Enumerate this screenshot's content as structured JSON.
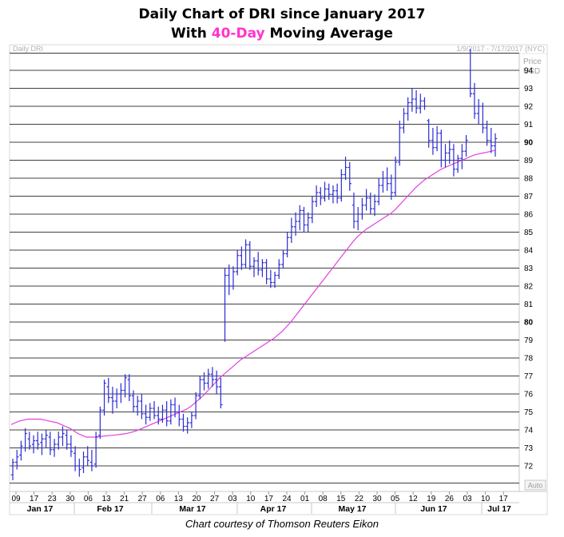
{
  "title_line1": "Daily Chart of DRI since January 2017",
  "title_line2_pre": "With ",
  "title_line2_highlight": "40-Day",
  "title_line2_post": " Moving Average",
  "corner_left": "Daily DRI",
  "corner_right": "1/9/2017 - 7/17/2017 (NYC)",
  "price_label": "Price",
  "currency_label": "USD",
  "auto_label": "Auto",
  "footer": "Chart courtesy of Thomson Reuters Eikon",
  "colors": {
    "bars": "#2b2bd6",
    "ma": "#e040e0",
    "grid": "#000000",
    "highlight": "#ff33cc"
  },
  "chart_data": {
    "type": "ohlc",
    "ylim": [
      71,
      95.5
    ],
    "yticks": [
      72,
      73,
      74,
      75,
      76,
      77,
      78,
      79,
      80,
      81,
      82,
      83,
      84,
      85,
      86,
      87,
      88,
      89,
      90,
      91,
      92,
      93,
      94
    ],
    "ytick_bold": [
      80,
      90
    ],
    "xticks": [
      "09",
      "17",
      "23",
      "30",
      "06",
      "13",
      "21",
      "27",
      "06",
      "13",
      "20",
      "27",
      "03",
      "10",
      "17",
      "24",
      "01",
      "08",
      "15",
      "22",
      "30",
      "05",
      "12",
      "19",
      "26",
      "03",
      "10",
      "17"
    ],
    "months": [
      "Jan 17",
      "Feb 17",
      "Mar 17",
      "Apr 17",
      "May 17",
      "Jun 17",
      "Jul 17"
    ],
    "series": [
      {
        "kind": "ohlc",
        "values": [
          [
            71.5,
            72.4,
            71.2,
            72.2
          ],
          [
            72.2,
            72.9,
            71.8,
            72.5
          ],
          [
            72.6,
            73.4,
            72.3,
            73.1
          ],
          [
            73.0,
            74.1,
            72.8,
            73.8
          ],
          [
            73.5,
            73.9,
            72.9,
            73.1
          ],
          [
            73.2,
            73.7,
            72.7,
            73.4
          ],
          [
            73.4,
            73.9,
            72.9,
            73.2
          ],
          [
            73.3,
            73.8,
            72.6,
            73.5
          ],
          [
            73.5,
            74.0,
            73.0,
            73.7
          ],
          [
            73.6,
            73.9,
            72.6,
            72.9
          ],
          [
            72.9,
            73.5,
            72.5,
            73.2
          ],
          [
            73.2,
            73.9,
            72.9,
            73.6
          ],
          [
            73.6,
            74.2,
            73.1,
            73.8
          ],
          [
            73.7,
            74.0,
            72.9,
            73.2
          ],
          [
            73.2,
            73.7,
            72.5,
            72.8
          ],
          [
            72.7,
            73.1,
            71.7,
            72.0
          ],
          [
            72.0,
            72.4,
            71.4,
            71.8
          ],
          [
            71.9,
            72.8,
            71.6,
            72.5
          ],
          [
            72.5,
            73.1,
            72.0,
            72.3
          ],
          [
            72.2,
            72.9,
            71.7,
            72.0
          ],
          [
            72.1,
            73.9,
            71.9,
            73.6
          ],
          [
            73.7,
            75.3,
            73.5,
            75.1
          ],
          [
            75.1,
            76.8,
            74.8,
            76.6
          ],
          [
            76.4,
            76.9,
            75.5,
            75.8
          ],
          [
            75.8,
            76.4,
            74.9,
            75.6
          ],
          [
            75.6,
            76.3,
            75.2,
            76.0
          ],
          [
            76.0,
            76.6,
            75.5,
            76.2
          ],
          [
            76.2,
            77.1,
            75.8,
            76.9
          ],
          [
            76.8,
            77.1,
            75.6,
            75.9
          ],
          [
            75.9,
            76.2,
            75.0,
            75.3
          ],
          [
            75.3,
            75.9,
            74.8,
            75.6
          ],
          [
            75.6,
            76.0,
            74.6,
            74.9
          ],
          [
            74.9,
            75.4,
            74.3,
            74.7
          ],
          [
            74.7,
            75.5,
            74.5,
            75.2
          ],
          [
            75.2,
            75.6,
            74.6,
            74.8
          ],
          [
            74.8,
            75.3,
            74.3,
            74.6
          ],
          [
            74.6,
            75.4,
            74.4,
            75.1
          ],
          [
            75.1,
            75.6,
            74.2,
            74.5
          ],
          [
            74.5,
            75.7,
            74.3,
            75.4
          ],
          [
            75.4,
            75.8,
            74.7,
            75.0
          ],
          [
            75.0,
            75.4,
            74.2,
            74.6
          ],
          [
            74.6,
            74.9,
            73.9,
            74.2
          ],
          [
            74.2,
            74.7,
            73.8,
            74.4
          ],
          [
            74.4,
            75.0,
            74.1,
            74.8
          ],
          [
            74.8,
            76.1,
            74.6,
            75.9
          ],
          [
            75.9,
            77.0,
            75.7,
            76.8
          ],
          [
            76.8,
            77.2,
            76.2,
            76.6
          ],
          [
            76.6,
            77.4,
            76.3,
            77.1
          ],
          [
            77.1,
            77.5,
            76.4,
            76.8
          ],
          [
            76.8,
            77.3,
            76.0,
            76.4
          ],
          [
            76.4,
            76.9,
            75.2,
            75.4
          ],
          [
            79.0,
            83.0,
            78.9,
            82.6
          ],
          [
            82.6,
            83.2,
            81.5,
            82.0
          ],
          [
            82.0,
            83.1,
            81.8,
            82.8
          ],
          [
            82.8,
            84.0,
            82.6,
            83.7
          ],
          [
            83.7,
            84.2,
            82.9,
            83.2
          ],
          [
            83.2,
            84.6,
            83.0,
            84.3
          ],
          [
            84.3,
            84.5,
            82.9,
            83.1
          ],
          [
            83.1,
            83.6,
            82.5,
            83.4
          ],
          [
            83.4,
            83.9,
            82.6,
            82.9
          ],
          [
            82.9,
            83.5,
            82.5,
            83.3
          ],
          [
            83.3,
            83.5,
            82.1,
            82.4
          ],
          [
            82.4,
            82.9,
            81.9,
            82.2
          ],
          [
            82.2,
            82.8,
            81.9,
            82.6
          ],
          [
            82.6,
            83.5,
            82.4,
            83.2
          ],
          [
            83.2,
            84.0,
            83.0,
            83.8
          ],
          [
            83.8,
            85.0,
            83.6,
            84.7
          ],
          [
            84.7,
            85.8,
            84.4,
            85.3
          ],
          [
            85.3,
            86.1,
            84.8,
            85.6
          ],
          [
            85.6,
            86.5,
            85.1,
            86.2
          ],
          [
            86.2,
            86.4,
            85.0,
            85.4
          ],
          [
            85.4,
            86.1,
            85.0,
            85.8
          ],
          [
            85.8,
            87.0,
            85.5,
            86.7
          ],
          [
            86.7,
            87.6,
            86.4,
            87.2
          ],
          [
            87.2,
            87.5,
            86.5,
            86.9
          ],
          [
            86.9,
            87.8,
            86.7,
            87.4
          ],
          [
            87.4,
            87.7,
            86.8,
            87.1
          ],
          [
            87.1,
            87.6,
            86.6,
            87.3
          ],
          [
            87.3,
            87.7,
            86.6,
            86.9
          ],
          [
            86.9,
            88.5,
            86.7,
            88.2
          ],
          [
            88.2,
            89.2,
            87.9,
            88.6
          ],
          [
            88.6,
            88.9,
            87.3,
            87.7
          ],
          [
            86.5,
            87.2,
            85.2,
            85.6
          ],
          [
            85.6,
            86.4,
            85.1,
            86.0
          ],
          [
            86.0,
            86.9,
            85.7,
            86.5
          ],
          [
            86.5,
            87.4,
            86.2,
            86.9
          ],
          [
            86.9,
            87.2,
            86.0,
            86.3
          ],
          [
            86.3,
            87.1,
            85.9,
            86.7
          ],
          [
            86.7,
            88.0,
            86.5,
            87.6
          ],
          [
            87.6,
            88.4,
            87.2,
            88.0
          ],
          [
            88.0,
            88.6,
            87.3,
            87.7
          ],
          [
            87.7,
            88.2,
            86.8,
            87.2
          ],
          [
            87.2,
            89.2,
            87.0,
            88.9
          ],
          [
            88.9,
            91.2,
            88.7,
            90.8
          ],
          [
            90.8,
            91.9,
            90.5,
            91.6
          ],
          [
            91.6,
            92.5,
            91.2,
            92.2
          ],
          [
            92.2,
            93.0,
            91.7,
            92.4
          ],
          [
            92.4,
            92.9,
            91.6,
            91.9
          ],
          [
            91.9,
            92.7,
            91.6,
            92.3
          ],
          [
            92.3,
            92.5,
            91.8,
            92.0
          ],
          [
            91.2,
            91.3,
            89.7,
            90.1
          ],
          [
            90.1,
            90.8,
            89.3,
            89.7
          ],
          [
            89.7,
            90.9,
            89.5,
            90.5
          ],
          [
            90.5,
            90.7,
            88.6,
            89.0
          ],
          [
            89.0,
            89.9,
            88.6,
            89.4
          ],
          [
            89.4,
            90.1,
            88.8,
            89.6
          ],
          [
            89.6,
            89.9,
            88.1,
            88.5
          ],
          [
            88.5,
            89.3,
            88.3,
            89.1
          ],
          [
            89.1,
            89.9,
            88.5,
            89.5
          ],
          [
            89.5,
            90.4,
            89.2,
            90.1
          ],
          [
            93.0,
            95.2,
            92.5,
            92.7
          ],
          [
            92.7,
            93.3,
            91.3,
            91.6
          ],
          [
            91.6,
            92.4,
            91.0,
            92.0
          ],
          [
            92.0,
            92.2,
            90.5,
            90.8
          ],
          [
            90.8,
            91.2,
            89.8,
            90.1
          ],
          [
            90.1,
            90.8,
            89.4,
            89.8
          ],
          [
            89.8,
            90.5,
            89.2,
            90.2
          ]
        ]
      },
      {
        "kind": "line",
        "name": "40-Day Moving Average",
        "values": [
          74.3,
          74.4,
          74.5,
          74.55,
          74.6,
          74.6,
          74.6,
          74.6,
          74.55,
          74.5,
          74.45,
          74.4,
          74.3,
          74.2,
          74.1,
          73.95,
          73.8,
          73.7,
          73.6,
          73.6,
          73.6,
          73.62,
          73.65,
          73.68,
          73.7,
          73.72,
          73.75,
          73.78,
          73.82,
          73.88,
          73.95,
          74.05,
          74.15,
          74.25,
          74.35,
          74.45,
          74.55,
          74.65,
          74.75,
          74.85,
          74.95,
          75.05,
          75.15,
          75.3,
          75.5,
          75.7,
          75.9,
          76.15,
          76.4,
          76.65,
          76.9,
          77.1,
          77.3,
          77.5,
          77.7,
          77.9,
          78.05,
          78.2,
          78.35,
          78.5,
          78.65,
          78.8,
          78.95,
          79.1,
          79.3,
          79.5,
          79.75,
          80.0,
          80.3,
          80.6,
          80.9,
          81.2,
          81.5,
          81.8,
          82.1,
          82.4,
          82.7,
          83.0,
          83.3,
          83.6,
          83.9,
          84.2,
          84.5,
          84.75,
          84.95,
          85.15,
          85.3,
          85.45,
          85.6,
          85.75,
          85.9,
          86.05,
          86.25,
          86.5,
          86.75,
          87.0,
          87.25,
          87.5,
          87.7,
          87.9,
          88.05,
          88.2,
          88.35,
          88.5,
          88.6,
          88.7,
          88.8,
          88.9,
          89.0,
          89.1,
          89.2,
          89.3,
          89.35,
          89.4,
          89.45,
          89.5,
          89.55
        ]
      }
    ]
  }
}
